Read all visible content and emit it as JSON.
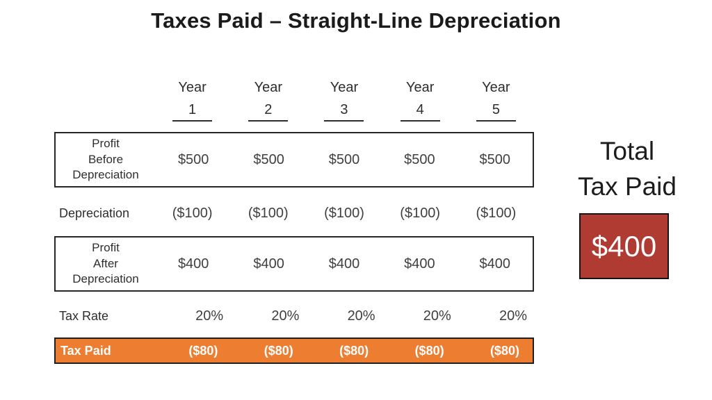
{
  "title": "Taxes Paid – Straight-Line Depreciation",
  "colors": {
    "orange": "#ED7D31",
    "red": "#B03B33"
  },
  "table": {
    "year_label": "Year",
    "years": [
      "1",
      "2",
      "3",
      "4",
      "5"
    ],
    "rows": [
      {
        "name": "profit-before-depreciation",
        "label_lines": [
          "Profit",
          "Before",
          "Depreciation"
        ],
        "values": [
          "$500",
          "$500",
          "$500",
          "$500",
          "$500"
        ]
      },
      {
        "name": "depreciation",
        "label": "Depreciation",
        "values": [
          "($100)",
          "($100)",
          "($100)",
          "($100)",
          "($100)"
        ]
      },
      {
        "name": "profit-after-depreciation",
        "label_lines": [
          "Profit",
          "After",
          "Depreciation"
        ],
        "values": [
          "$400",
          "$400",
          "$400",
          "$400",
          "$400"
        ]
      },
      {
        "name": "tax-rate",
        "label": "Tax Rate",
        "values": [
          "20%",
          "20%",
          "20%",
          "20%",
          "20%"
        ]
      },
      {
        "name": "tax-paid",
        "label": "Tax Paid",
        "values": [
          "($80)",
          "($80)",
          "($80)",
          "($80)",
          "($80)"
        ]
      }
    ]
  },
  "total": {
    "label_lines": [
      "Total",
      "Tax Paid"
    ],
    "value": "$400"
  }
}
